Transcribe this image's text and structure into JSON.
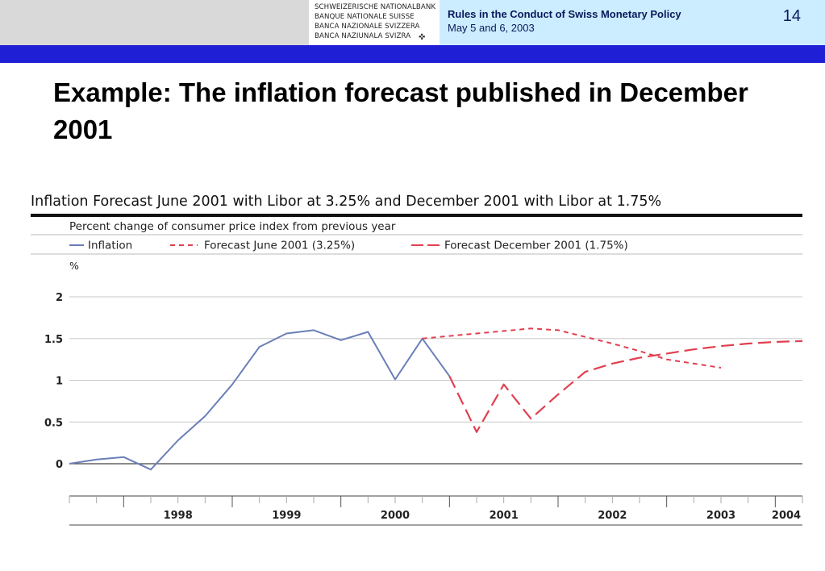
{
  "header": {
    "logo_lines": [
      "SCHWEIZERISCHE NATIONALBANK",
      "BANQUE NATIONALE SUISSE",
      "BANCA NAZIONALE SVIZZERA",
      "BANCA NAZIUNALA SVIZRA"
    ],
    "logo_icon": "swiss-cross-icon",
    "conference_title": "Rules in the Conduct of Swiss Monetary Policy",
    "conference_date": "May 5 and 6, 2003",
    "slide_number": "14"
  },
  "slide": {
    "title": "Example: The inflation forecast published in December 2001"
  },
  "colors": {
    "inflation": "#6a7fb8",
    "forecast_june": "#e04050",
    "forecast_december": "#e04050",
    "header_panel": "#ccecff",
    "blue_bar": "#1f1fd6"
  },
  "chart_data": {
    "type": "line",
    "title": "Inflation Forecast June 2001 with Libor at 3.25% and December 2001 with Libor at 1.75%",
    "subtitle": "Percent change of consumer price index from previous year",
    "ylabel": "%",
    "ylim": [
      -0.25,
      2
    ],
    "yticks": [
      0,
      0.5,
      1,
      1.5,
      2
    ],
    "ytick_labels": [
      "0",
      "0.5",
      "1",
      "1.5",
      "2"
    ],
    "xlim": [
      1997.5,
      2004.25
    ],
    "xtick_labels": [
      "1998",
      "1999",
      "2000",
      "2001",
      "2002",
      "2003",
      "2004"
    ],
    "grid": true,
    "legend": "top",
    "series": [
      {
        "name": "Inflation",
        "style": "solid",
        "x": [
          1997.5,
          1997.75,
          1998.0,
          1998.25,
          1998.5,
          1998.75,
          1999.0,
          1999.25,
          1999.5,
          1999.75,
          2000.0,
          2000.25,
          2000.5,
          2000.75,
          2001.0
        ],
        "y": [
          0.0,
          0.05,
          0.08,
          -0.07,
          0.28,
          0.57,
          0.95,
          1.4,
          1.56,
          1.6,
          1.48,
          1.58,
          1.01,
          1.5,
          1.05
        ]
      },
      {
        "name": "Forecast June 2001 (3.25%)",
        "style": "short-dash",
        "x": [
          2000.75,
          2001.0,
          2001.25,
          2001.5,
          2001.75,
          2002.0,
          2002.25,
          2002.5,
          2002.75,
          2003.0,
          2003.25,
          2003.5
        ],
        "y": [
          1.5,
          1.53,
          1.56,
          1.59,
          1.62,
          1.6,
          1.52,
          1.44,
          1.35,
          1.25,
          1.2,
          1.15
        ]
      },
      {
        "name": "Forecast December 2001 (1.75%)",
        "style": "long-dash",
        "x": [
          2001.0,
          2001.25,
          2001.5,
          2001.75,
          2002.0,
          2002.25,
          2002.5,
          2002.75,
          2003.0,
          2003.25,
          2003.5,
          2003.75,
          2004.0,
          2004.25
        ],
        "y": [
          1.05,
          0.38,
          0.95,
          0.54,
          0.83,
          1.1,
          1.2,
          1.27,
          1.32,
          1.37,
          1.41,
          1.44,
          1.46,
          1.47
        ]
      }
    ]
  }
}
